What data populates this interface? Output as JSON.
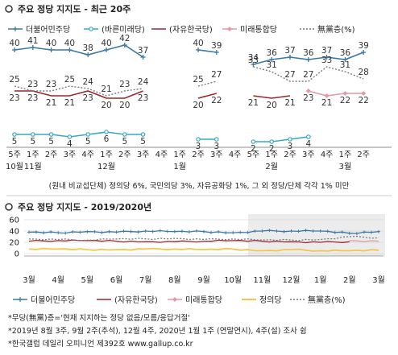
{
  "top": {
    "title": "주요 정당 지지도 - 최근 20주",
    "note": "(원내 비교섭단체) 정의당 6%, 국민의당 3%, 자유공화당 1%, 그 외 정당/단체 각각 1% 미만",
    "week_labels": [
      "5주",
      "1주",
      "2주",
      "3주",
      "4주",
      "1주",
      "2주",
      "3주",
      "4주",
      "1주",
      "2주",
      "3주",
      "4주",
      "5주",
      "1주",
      "2주",
      "3주",
      "4주",
      "1주",
      "2주"
    ],
    "month_labels": [
      {
        "text": "10월",
        "idx": 0
      },
      {
        "text": "11월",
        "idx": 1
      },
      {
        "text": "12월",
        "idx": 5
      },
      {
        "text": "1월",
        "idx": 9
      },
      {
        "text": "2월",
        "idx": 14
      },
      {
        "text": "3월",
        "idx": 18
      }
    ]
  },
  "bottom": {
    "title": "주요 정당 지지도 - 2019/2020년",
    "y_ticks": [
      "60",
      "40",
      "20",
      "0"
    ],
    "month_labels": [
      "3월",
      "4월",
      "5월",
      "6월",
      "7월",
      "8월",
      "9월",
      "10월",
      "11월",
      "12월",
      "1월",
      "2월",
      "3월"
    ]
  },
  "footnotes": [
    "*무당(無黨)층='현재 지지하는 정당 없음/모름/응답거절'",
    "*2019년 8월 3주, 9월 2주(추석), 12월 4주, 2020년 1월 1주 (연말연시), 4주(설) 조사 쉼",
    "*한국갤럽 데일리 오피니언 제392호 www.gallup.co.kr"
  ],
  "colors": {
    "minjoo": "#3a78a6",
    "bareun": "#3ba6c4",
    "jayu": "#9b2630",
    "mirae": "#e39aa2",
    "mudang": "#7a7a7a",
    "jeongui": "#f3c54a",
    "shade": "#ececec"
  },
  "chart_data": [
    {
      "type": "line",
      "title": "주요 정당 지지도 - 최근 20주",
      "categories": [
        "10월 5주",
        "11월 1주",
        "11월 2주",
        "11월 3주",
        "11월 4주",
        "12월 1주",
        "12월 2주",
        "12월 3주",
        "12월 4주",
        "1월 1주",
        "1월 2주",
        "1월 3주",
        "1월 4주",
        "1월 5주",
        "2월 1주",
        "2월 2주",
        "2월 3주",
        "2월 4주",
        "3월 1주",
        "3월 2주"
      ],
      "ylim": [
        0,
        50
      ],
      "series": [
        {
          "name": "더불어민주당",
          "values": [
            40,
            41,
            40,
            40,
            38,
            40,
            42,
            37,
            null,
            null,
            40,
            39,
            null,
            34,
            36,
            37,
            36,
            37,
            36,
            39
          ]
        },
        {
          "name": "(바른미래당)",
          "values": [
            5,
            5,
            5,
            4,
            5,
            6,
            5,
            5,
            null,
            null,
            3,
            3,
            null,
            2,
            2,
            3,
            4,
            null,
            null,
            null
          ]
        },
        {
          "name": "(자유한국당)",
          "values": [
            23,
            23,
            21,
            21,
            23,
            20,
            20,
            23,
            null,
            null,
            20,
            22,
            null,
            21,
            20,
            21,
            null,
            null,
            null,
            null
          ]
        },
        {
          "name": "미래통합당",
          "values": [
            null,
            null,
            null,
            null,
            null,
            null,
            null,
            null,
            null,
            null,
            null,
            null,
            null,
            null,
            null,
            null,
            23,
            21,
            22,
            22
          ]
        },
        {
          "name": "無黨층(%)",
          "values": [
            25,
            23,
            23,
            25,
            24,
            21,
            23,
            24,
            null,
            null,
            25,
            27,
            null,
            33,
            31,
            27,
            27,
            33,
            31,
            28
          ]
        }
      ]
    },
    {
      "type": "line",
      "title": "주요 정당 지지도 - 2019/2020년",
      "categories": [
        "3월",
        "4월",
        "5월",
        "6월",
        "7월",
        "8월",
        "9월",
        "10월",
        "11월",
        "12월",
        "1월",
        "2월",
        "3월"
      ],
      "ylim": [
        0,
        60
      ],
      "series": [
        {
          "name": "더불어민주당",
          "values": [
            38,
            37,
            39,
            38,
            40,
            39,
            39,
            37,
            40,
            40,
            40,
            36,
            39
          ]
        },
        {
          "name": "(자유한국당)",
          "values": [
            22,
            23,
            23,
            22,
            21,
            21,
            22,
            23,
            22,
            21,
            20,
            21,
            null
          ]
        },
        {
          "name": "미래통합당",
          "values": [
            null,
            null,
            null,
            null,
            null,
            null,
            null,
            null,
            null,
            null,
            null,
            23,
            22
          ]
        },
        {
          "name": "정의당",
          "values": [
            8,
            8,
            7,
            7,
            8,
            8,
            7,
            8,
            5,
            7,
            5,
            5,
            6
          ]
        },
        {
          "name": "無黨층(%)",
          "values": [
            26,
            25,
            24,
            26,
            26,
            27,
            25,
            26,
            24,
            24,
            25,
            30,
            28
          ]
        }
      ]
    }
  ],
  "legend_top": [
    "더불어민주당",
    "(바른미래당)",
    "(자유한국당)",
    "미래통합당",
    "無黨층(%)"
  ],
  "legend_bottom": [
    "더불어민주당",
    "(자유한국당)",
    "미래통합당",
    "정의당",
    "無黨층(%)"
  ]
}
